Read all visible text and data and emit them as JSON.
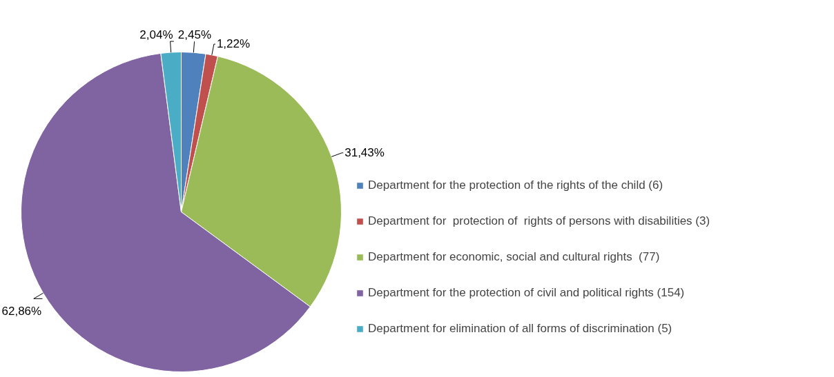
{
  "chart_data": {
    "type": "pie",
    "categories": [
      "Department for the protection of the rights of the child (6)",
      "Department for  protection of  rights of persons with disabilities (3)",
      "Department for economic, social and cultural rights  (77)",
      "Department for the protection of civil and political rights (154)",
      "Department for elimination of all forms of discrimination (5)"
    ],
    "values": [
      2.45,
      1.22,
      31.43,
      62.86,
      2.04
    ],
    "value_labels": [
      "2,45%",
      "1,22%",
      "31,43%",
      "62,86%",
      "2,04%"
    ],
    "colors": [
      "#4f81bd",
      "#c0504d",
      "#9bbb59",
      "#8064a2",
      "#4bacc6"
    ],
    "legend": "right"
  }
}
